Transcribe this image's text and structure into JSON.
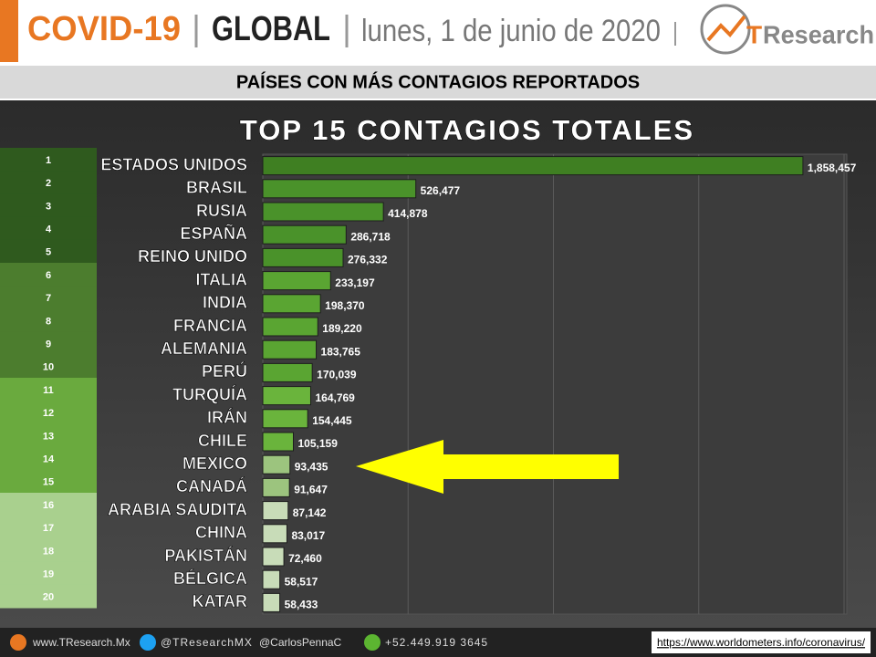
{
  "header": {
    "topic": "COVID-19",
    "scope": "GLOBAL",
    "date": "lunes, 1 de junio de 2020",
    "logo_prefix": "T",
    "logo_suffix": "Research"
  },
  "banner": "PAÍSES CON MÁS CONTAGIOS REPORTADOS",
  "chart_data": {
    "type": "bar",
    "orientation": "horizontal",
    "title": "TOP 15 CONTAGIOS TOTALES",
    "ranks": [
      1,
      2,
      3,
      4,
      5,
      6,
      7,
      8,
      9,
      10,
      11,
      12,
      13,
      14,
      15,
      16,
      17,
      18,
      19,
      20
    ],
    "rank_colors": [
      "#2f5a1e",
      "#2f5a1e",
      "#2f5a1e",
      "#2f5a1e",
      "#2f5a1e",
      "#4c7d2e",
      "#4c7d2e",
      "#4c7d2e",
      "#4c7d2e",
      "#4c7d2e",
      "#6aaa3e",
      "#6aaa3e",
      "#6aaa3e",
      "#6aaa3e",
      "#6aaa3e",
      "#a9d08e",
      "#a9d08e",
      "#a9d08e",
      "#a9d08e",
      "#a9d08e"
    ],
    "categories": [
      "ESTADOS UNIDOS",
      "BRASIL",
      "RUSIA",
      "ESPAÑA",
      "REINO UNIDO",
      "ITALIA",
      "INDIA",
      "FRANCIA",
      "ALEMANIA",
      "PERÚ",
      "TURQUÍA",
      "IRÁN",
      "CHILE",
      "MEXICO",
      "CANADÁ",
      "ARABIA SAUDITA",
      "CHINA",
      "PAKISTÁN",
      "BÉLGICA",
      "KATAR"
    ],
    "values": [
      1858457,
      526477,
      414878,
      286718,
      276332,
      233197,
      198370,
      189220,
      183765,
      170039,
      164769,
      154445,
      105159,
      93435,
      91647,
      87142,
      83017,
      72460,
      58517,
      58433
    ],
    "value_labels": [
      "1,858,457",
      "526,477",
      "414,878",
      "286,718",
      "276,332",
      "233,197",
      "198,370",
      "189,220",
      "183,765",
      "170,039",
      "164,769",
      "154,445",
      "105,159",
      "93,435",
      "91,647",
      "87,142",
      "83,017",
      "72,460",
      "58,517",
      "58,433"
    ],
    "colors": [
      "#3f7f22",
      "#4a922a",
      "#4a922a",
      "#4a922a",
      "#4a922a",
      "#5aa532",
      "#5aa532",
      "#5aa532",
      "#5aa532",
      "#5aa532",
      "#6ab43c",
      "#6ab43c",
      "#6ab43c",
      "#9cc47e",
      "#9cc47e",
      "#c8dcb8",
      "#c8dcb8",
      "#c8dcb8",
      "#c8dcb8",
      "#c8dcb8"
    ],
    "xlim": [
      0,
      2000000
    ],
    "xticks": [
      0,
      500000,
      1000000,
      1500000,
      2000000
    ],
    "grid": true
  },
  "footer": {
    "web": "www.TResearch.Mx",
    "twitter": "@TResearchMX",
    "twitter2": "@CarlosPennaC",
    "phone": "+52.449.919 3645",
    "source": "https://www.worldometers.info/coronavirus/"
  }
}
